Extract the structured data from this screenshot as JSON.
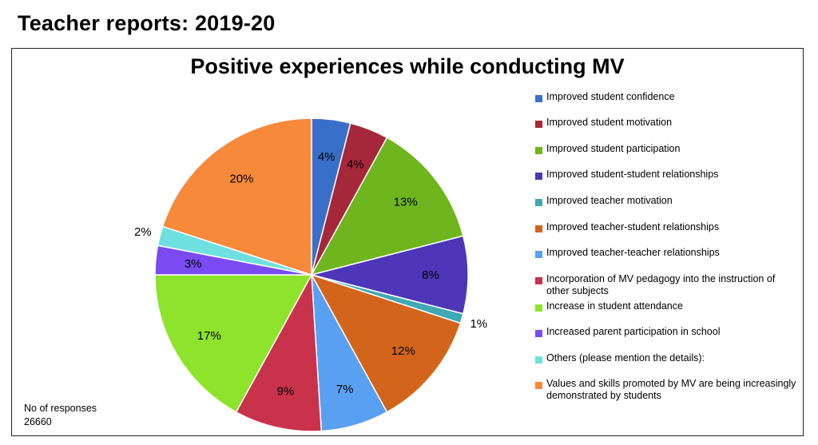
{
  "page": {
    "title": "Teacher reports: 2019-20"
  },
  "chart_data": {
    "type": "pie",
    "title": "Positive experiences while conducting MV",
    "legend_position": "right",
    "slices": [
      {
        "label": "Improved student confidence",
        "value": 4,
        "display": "4%",
        "color": "#3a6fc9"
      },
      {
        "label": "Improved student motivation",
        "value": 4,
        "display": "4%",
        "color": "#a5283a"
      },
      {
        "label": "Improved student participation",
        "value": 13,
        "display": "13%",
        "color": "#6fb51e"
      },
      {
        "label": "Improved student-student relationships",
        "value": 8,
        "display": "8%",
        "color": "#4d36b8"
      },
      {
        "label": "Improved teacher motivation",
        "value": 1,
        "display": "1%",
        "color": "#3fa8b3"
      },
      {
        "label": "Improved teacher-student relationships",
        "value": 12,
        "display": "12%",
        "color": "#d2651b"
      },
      {
        "label": "Improved teacher-teacher relationships",
        "value": 7,
        "display": "7%",
        "color": "#5aa0f2"
      },
      {
        "label": "Incorporation of MV pedagogy into the instruction of other subjects",
        "value": 9,
        "display": "9%",
        "color": "#c8324a"
      },
      {
        "label": "Increase in student attendance",
        "value": 17,
        "display": "17%",
        "color": "#8ee32c"
      },
      {
        "label": "Increased parent participation in school",
        "value": 3,
        "display": "3%",
        "color": "#7a4af2"
      },
      {
        "label": "Others (please mention the details):",
        "value": 2,
        "display": "2%",
        "color": "#6fe0e0"
      },
      {
        "label": "Values and skills promoted by MV are being increasingly demonstrated by students",
        "value": 20,
        "display": "20%",
        "color": "#f7893a"
      }
    ]
  },
  "responses": {
    "label": "No of responses",
    "count": "26660"
  }
}
